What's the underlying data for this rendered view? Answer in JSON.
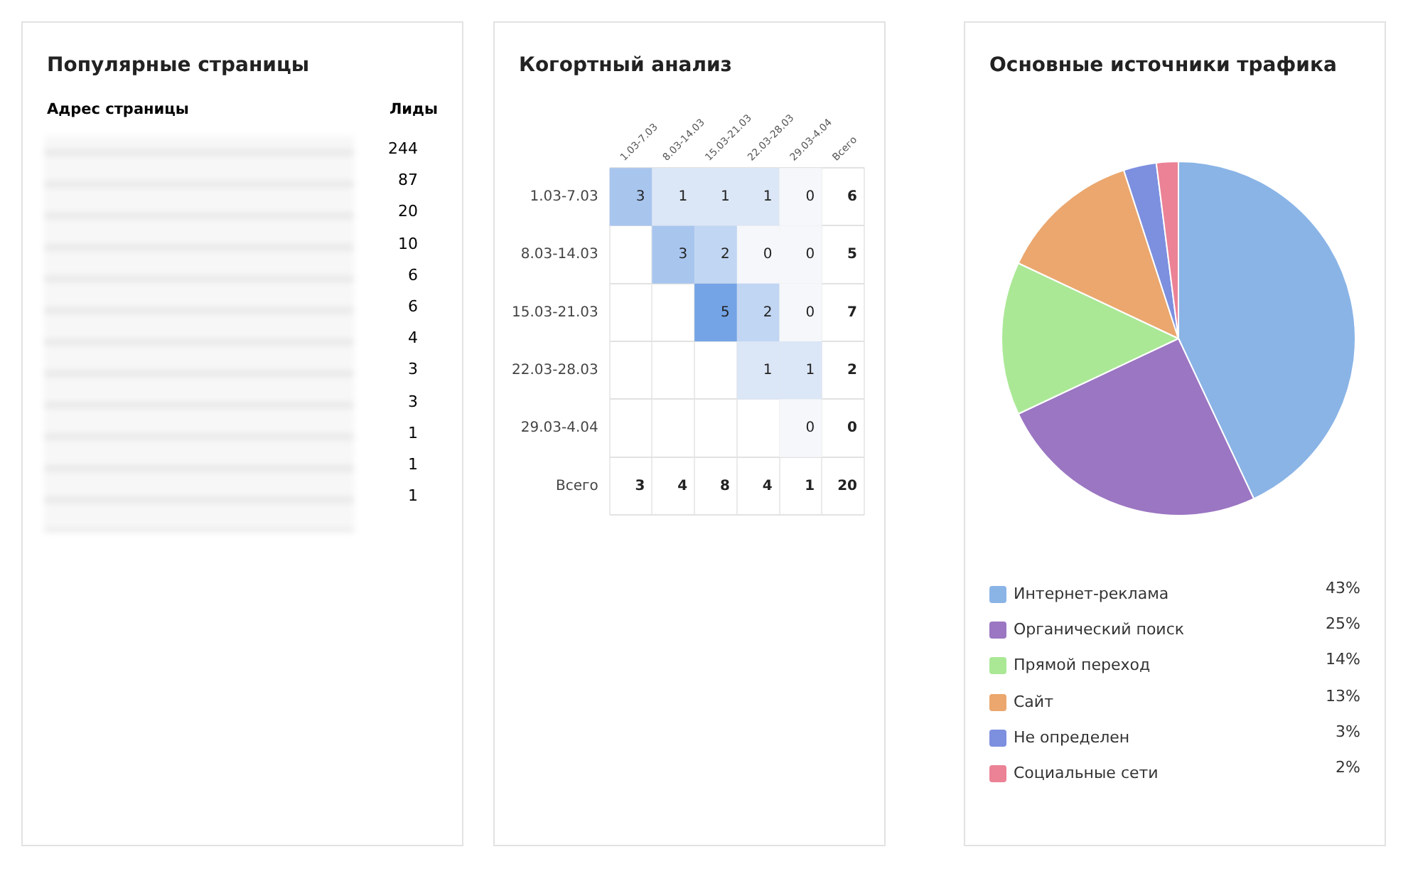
{
  "chart_data": [
    {
      "type": "other",
      "title": "Популярные страницы",
      "xlabel": "Адрес страницы",
      "ylabel": "Лиды",
      "categories": [
        null,
        null,
        null,
        null,
        null,
        null,
        null,
        null,
        null,
        null,
        null,
        null
      ],
      "values": [
        244,
        87,
        20,
        10,
        6,
        6,
        4,
        3,
        3,
        1,
        1,
        1
      ],
      "data_labels": true
    },
    {
      "type": "heatmap",
      "title": "Когортный анализ",
      "categories": [
        "1.03-7.03",
        "8.03-14.03",
        "15.03-21.03",
        "22.03-28.03",
        "29.03-4.04",
        "Всего"
      ],
      "y_categories": [
        "1.03-7.03",
        "8.03-14.03",
        "15.03-21.03",
        "22.03-28.03",
        "29.03-4.04",
        "Всего"
      ],
      "cells": [
        [
          3,
          1,
          1,
          1,
          0,
          6
        ],
        [
          null,
          3,
          2,
          0,
          0,
          5
        ],
        [
          null,
          null,
          5,
          2,
          0,
          7
        ],
        [
          null,
          null,
          null,
          1,
          1,
          2
        ],
        [
          null,
          null,
          null,
          null,
          0,
          0
        ],
        [
          3,
          4,
          8,
          4,
          1,
          20
        ]
      ],
      "data_labels": true,
      "grid": true
    },
    {
      "type": "pie",
      "title": "Основные источники трафика",
      "categories": [
        "Интернет-реклама",
        "Органический поиск",
        "Прямой переход",
        "Сайт",
        "Не определен",
        "Социальные сети"
      ],
      "values": [
        43,
        25,
        14,
        13,
        3,
        2
      ],
      "colors": [
        "#8ab4e6",
        "#9b76c2",
        "#aae896",
        "#eba76e",
        "#7d8fdf",
        "#eb8296"
      ],
      "value_labels": [
        "43%",
        "25%",
        "14%",
        "13%",
        "3%",
        "2%"
      ],
      "legend": "bottom"
    }
  ]
}
